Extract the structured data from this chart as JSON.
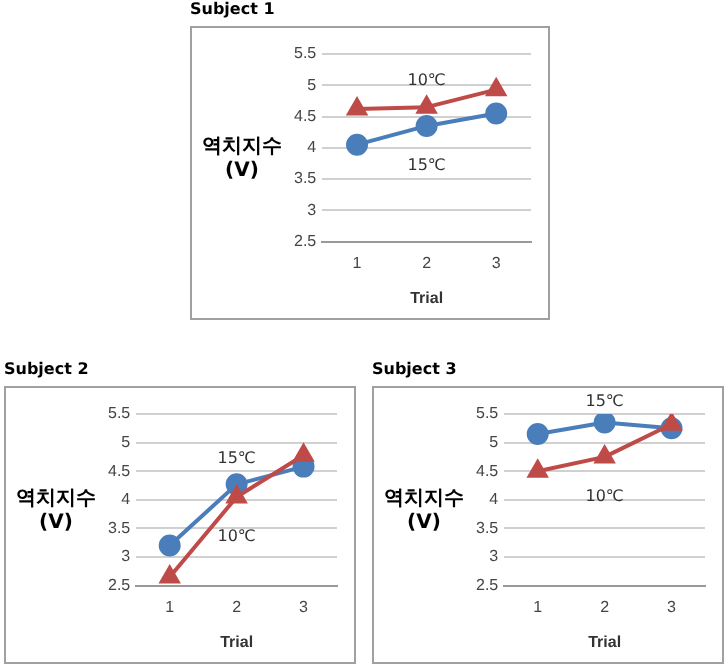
{
  "chart_data": [
    {
      "type": "line",
      "title": "Subject 1",
      "xlabel": "Trial",
      "ylabel": "역치지수 (V)",
      "categories": [
        "1",
        "2",
        "3"
      ],
      "ylim": [
        2.5,
        5.5
      ],
      "yticks": [
        2.5,
        3,
        3.5,
        4,
        4.5,
        5,
        5.5
      ],
      "grid": "y",
      "legend": false,
      "line_style": "solid",
      "series": [
        {
          "name": "15℃",
          "color": "#4a7ebb",
          "marker": "circle",
          "values": [
            4.05,
            4.35,
            4.55
          ]
        },
        {
          "name": "10℃",
          "color": "#be4b48",
          "marker": "triangle",
          "values": [
            4.62,
            4.65,
            4.93
          ]
        }
      ]
    },
    {
      "type": "line",
      "title": "Subject 2",
      "xlabel": "Trial",
      "ylabel": "역치지수 (V)",
      "categories": [
        "1",
        "2",
        "3"
      ],
      "ylim": [
        2.5,
        5.5
      ],
      "yticks": [
        2.5,
        3,
        3.5,
        4,
        4.5,
        5,
        5.5
      ],
      "grid": "y",
      "legend": false,
      "line_style": "solid",
      "series": [
        {
          "name": "15℃",
          "color": "#4a7ebb",
          "marker": "circle",
          "values": [
            3.2,
            4.27,
            4.58
          ]
        },
        {
          "name": "10℃",
          "color": "#be4b48",
          "marker": "triangle",
          "values": [
            2.65,
            4.05,
            4.78
          ]
        }
      ]
    },
    {
      "type": "line",
      "title": "Subject 3",
      "xlabel": "Trial",
      "ylabel": "역치지수 (V)",
      "categories": [
        "1",
        "2",
        "3"
      ],
      "ylim": [
        2.5,
        5.5
      ],
      "yticks": [
        2.5,
        3,
        3.5,
        4,
        4.5,
        5,
        5.5
      ],
      "grid": "y",
      "legend": false,
      "line_style": "solid",
      "series": [
        {
          "name": "15℃",
          "color": "#4a7ebb",
          "marker": "circle",
          "values": [
            5.15,
            5.35,
            5.25
          ]
        },
        {
          "name": "10℃",
          "color": "#be4b48",
          "marker": "triangle",
          "values": [
            4.5,
            4.75,
            5.32
          ]
        }
      ]
    }
  ]
}
